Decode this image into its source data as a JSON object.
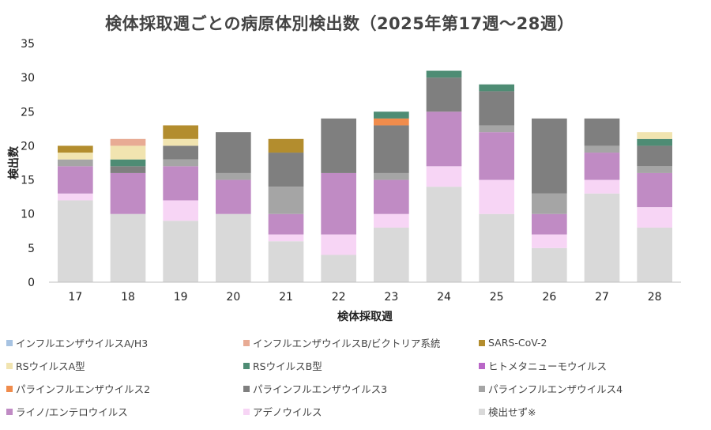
{
  "chart_data": {
    "type": "bar",
    "stacked": true,
    "title": "検体採取週ごとの病原体別検出数（2025年第17週～28週）",
    "xlabel": "検体採取週",
    "ylabel": "検出数",
    "ylim": [
      0,
      35
    ],
    "yticks": [
      0,
      5,
      10,
      15,
      20,
      25,
      30,
      35
    ],
    "grid": false,
    "legend_position": "bottom",
    "categories": [
      "17",
      "18",
      "19",
      "20",
      "21",
      "22",
      "23",
      "24",
      "25",
      "26",
      "27",
      "28"
    ],
    "series": [
      {
        "name": "検出せず※",
        "color": "#d9d9d9",
        "values": [
          12,
          10,
          9,
          10,
          6,
          4,
          8,
          14,
          10,
          5,
          13,
          8
        ]
      },
      {
        "name": "アデノウイルス",
        "color": "#f7d5f5",
        "values": [
          1,
          0,
          3,
          0,
          1,
          3,
          2,
          3,
          5,
          2,
          2,
          3
        ]
      },
      {
        "name": "ライノ/エンテロウイルス",
        "color": "#c08bc4",
        "values": [
          4,
          6,
          5,
          5,
          3,
          9,
          5,
          8,
          7,
          3,
          4,
          5
        ]
      },
      {
        "name": "パラインフルエンザウイルス4",
        "color": "#a5a5a5",
        "values": [
          1,
          0,
          1,
          1,
          4,
          0,
          1,
          0,
          1,
          3,
          1,
          1
        ]
      },
      {
        "name": "パラインフルエンザウイルス3",
        "color": "#7f7f7f",
        "values": [
          0,
          1,
          2,
          6,
          5,
          8,
          7,
          5,
          5,
          11,
          4,
          3
        ]
      },
      {
        "name": "パラインフルエンザウイルス2",
        "color": "#f08c4c",
        "values": [
          0,
          0,
          0,
          0,
          0,
          0,
          1,
          0,
          0,
          0,
          0,
          0
        ]
      },
      {
        "name": "ヒトメタニューモウイルス",
        "color": "#b967c7",
        "values": [
          0,
          0,
          0,
          0,
          0,
          0,
          0,
          0,
          0,
          0,
          0,
          0
        ]
      },
      {
        "name": "RSウイルスB型",
        "color": "#4e8c74",
        "values": [
          0,
          1,
          0,
          0,
          0,
          0,
          1,
          1,
          1,
          0,
          0,
          1
        ]
      },
      {
        "name": "RSウイルスA型",
        "color": "#f1e4b0",
        "values": [
          1,
          2,
          1,
          0,
          0,
          0,
          0,
          0,
          0,
          0,
          0,
          1
        ]
      },
      {
        "name": "SARS-CoV-2",
        "color": "#b38d2e",
        "values": [
          1,
          0,
          2,
          0,
          2,
          0,
          0,
          0,
          0,
          0,
          0,
          0
        ]
      },
      {
        "name": "インフルエンザウイルスB/ビクトリア系統",
        "color": "#e8ab94",
        "values": [
          0,
          1,
          0,
          0,
          0,
          0,
          0,
          0,
          0,
          0,
          0,
          0
        ]
      },
      {
        "name": "インフルエンザウイルスA/H3",
        "color": "#a7c3e2",
        "values": [
          0,
          0,
          0,
          0,
          0,
          0,
          0,
          0,
          0,
          0,
          0,
          0
        ]
      }
    ],
    "legend_order": [
      "インフルエンザウイルスA/H3",
      "インフルエンザウイルスB/ビクトリア系統",
      "SARS-CoV-2",
      "RSウイルスA型",
      "RSウイルスB型",
      "ヒトメタニューモウイルス",
      "パラインフルエンザウイルス2",
      "パラインフルエンザウイルス3",
      "パラインフルエンザウイルス4",
      "ライノ/エンテロウイルス",
      "アデノウイルス",
      "検出せず※"
    ]
  }
}
